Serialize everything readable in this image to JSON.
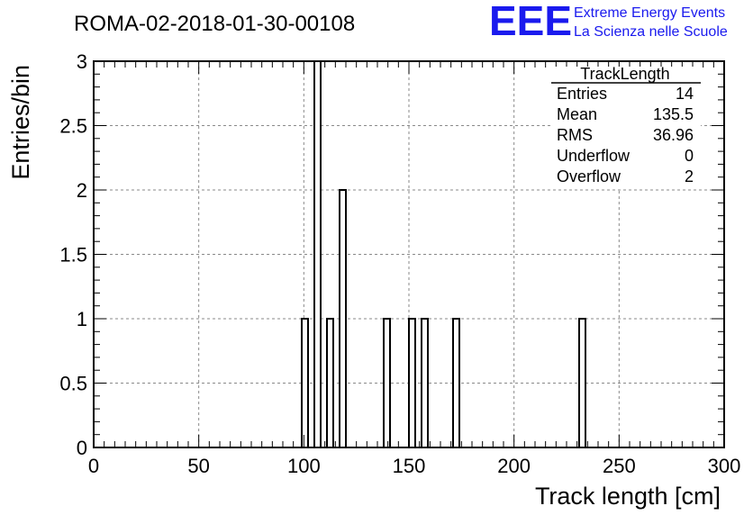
{
  "chart_data": {
    "type": "bar",
    "title": "ROMA-02-2018-01-30-00108",
    "xlabel": "Track length [cm]",
    "ylabel": "Entries/bin",
    "xlim": [
      0,
      300
    ],
    "ylim": [
      0,
      3.0
    ],
    "grid": true,
    "x_ticks": [
      "0",
      "50",
      "100",
      "150",
      "200",
      "250",
      "300"
    ],
    "y_ticks": [
      "0",
      "0.5",
      "1",
      "1.5",
      "2",
      "2.5",
      "3"
    ],
    "bin_width": 3,
    "bins": [
      {
        "x": 99,
        "value": 1
      },
      {
        "x": 105,
        "value": 3
      },
      {
        "x": 111,
        "value": 1
      },
      {
        "x": 117,
        "value": 2
      },
      {
        "x": 138,
        "value": 1
      },
      {
        "x": 150,
        "value": 1
      },
      {
        "x": 156,
        "value": 1
      },
      {
        "x": 171,
        "value": 1
      },
      {
        "x": 231,
        "value": 1
      }
    ],
    "stats_box": {
      "title": "TrackLength",
      "rows": [
        {
          "label": "Entries",
          "value": "14"
        },
        {
          "label": "Mean",
          "value": "135.5"
        },
        {
          "label": "RMS",
          "value": "36.96"
        },
        {
          "label": "Underflow",
          "value": "0"
        },
        {
          "label": "Overflow",
          "value": "2"
        }
      ]
    }
  },
  "logo": {
    "letters": "EEE",
    "line1": "Extreme Energy Events",
    "line2": "La Scienza nelle Scuole",
    "color": "#1a1aee"
  }
}
